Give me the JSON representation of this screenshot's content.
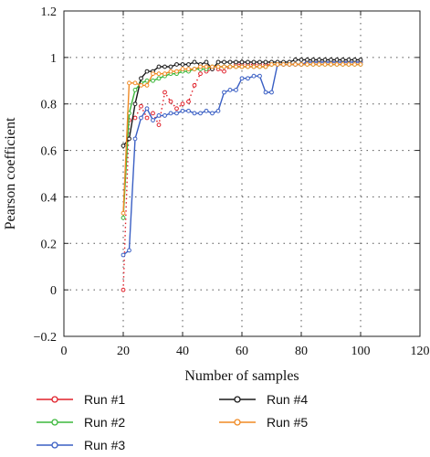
{
  "chart_data": {
    "type": "line",
    "title": "",
    "xlabel": "Number of samples",
    "ylabel": "Pearson coefficient",
    "xlim": [
      0,
      120
    ],
    "ylim": [
      -0.2,
      1.2
    ],
    "xticks": [
      0,
      20,
      40,
      60,
      80,
      100,
      120
    ],
    "yticks": [
      -0.2,
      0,
      0.2,
      0.4,
      0.6,
      0.8,
      1,
      1.2
    ],
    "xtick_labels": [
      "0",
      "20",
      "40",
      "60",
      "80",
      "100",
      "120"
    ],
    "ytick_labels": [
      "−0.2",
      "0",
      "0.2",
      "0.4",
      "0.6",
      "0.8",
      "1",
      "1.2"
    ],
    "grid": "dotted",
    "legend_position": "bottom",
    "series": [
      {
        "name": "Run #1",
        "color": "#e0202a",
        "line": "dotted",
        "x": [
          20,
          22,
          24,
          26,
          28,
          30,
          32,
          34,
          36,
          38,
          40,
          42,
          44,
          46,
          48,
          50,
          52,
          54,
          56,
          58,
          60,
          62,
          64,
          66,
          68,
          70,
          72,
          74,
          76,
          78,
          80,
          82,
          84,
          86,
          88,
          90,
          92,
          94,
          96,
          98,
          100
        ],
        "y": [
          0.0,
          0.73,
          0.74,
          0.79,
          0.74,
          0.76,
          0.71,
          0.85,
          0.81,
          0.78,
          0.8,
          0.81,
          0.88,
          0.93,
          0.94,
          0.95,
          0.95,
          0.94,
          0.96,
          0.97,
          0.97,
          0.97,
          0.97,
          0.97,
          0.97,
          0.97,
          0.97,
          0.97,
          0.97,
          0.97,
          0.97,
          0.98,
          0.98,
          0.98,
          0.98,
          0.98,
          0.98,
          0.98,
          0.98,
          0.98,
          0.98
        ]
      },
      {
        "name": "Run #2",
        "color": "#3cb83c",
        "line": "solid",
        "x": [
          20,
          22,
          24,
          26,
          28,
          30,
          32,
          34,
          36,
          38,
          40,
          42,
          44,
          46,
          48,
          50,
          52,
          54,
          56,
          58,
          60,
          62,
          64,
          66,
          68,
          70,
          72,
          74,
          76,
          78,
          80,
          82,
          84,
          86,
          88,
          90,
          92,
          94,
          96,
          98,
          100
        ],
        "y": [
          0.31,
          0.76,
          0.86,
          0.89,
          0.9,
          0.9,
          0.91,
          0.92,
          0.93,
          0.93,
          0.94,
          0.94,
          0.95,
          0.95,
          0.95,
          0.96,
          0.96,
          0.96,
          0.96,
          0.96,
          0.96,
          0.96,
          0.96,
          0.96,
          0.96,
          0.97,
          0.97,
          0.97,
          0.97,
          0.97,
          0.97,
          0.97,
          0.97,
          0.97,
          0.97,
          0.97,
          0.97,
          0.97,
          0.97,
          0.97,
          0.97
        ]
      },
      {
        "name": "Run #3",
        "color": "#3a5fc4",
        "line": "solid",
        "x": [
          20,
          22,
          24,
          26,
          28,
          30,
          32,
          34,
          36,
          38,
          40,
          42,
          44,
          46,
          48,
          50,
          52,
          54,
          56,
          58,
          60,
          62,
          64,
          66,
          68,
          70,
          72,
          74,
          76,
          78,
          80,
          82,
          84,
          86,
          88,
          90,
          92,
          94,
          96,
          98,
          100
        ],
        "y": [
          0.15,
          0.17,
          0.65,
          0.74,
          0.78,
          0.73,
          0.75,
          0.75,
          0.76,
          0.76,
          0.77,
          0.77,
          0.76,
          0.76,
          0.77,
          0.76,
          0.77,
          0.85,
          0.86,
          0.86,
          0.91,
          0.91,
          0.92,
          0.92,
          0.85,
          0.85,
          0.97,
          0.97,
          0.97,
          0.97,
          0.97,
          0.98,
          0.98,
          0.98,
          0.98,
          0.98,
          0.98,
          0.98,
          0.98,
          0.98,
          0.98
        ]
      },
      {
        "name": "Run #4",
        "color": "#1a1a1a",
        "line": "solid",
        "x": [
          20,
          22,
          24,
          26,
          28,
          30,
          32,
          34,
          36,
          38,
          40,
          42,
          44,
          46,
          48,
          50,
          52,
          54,
          56,
          58,
          60,
          62,
          64,
          66,
          68,
          70,
          72,
          74,
          76,
          78,
          80,
          82,
          84,
          86,
          88,
          90,
          92,
          94,
          96,
          98,
          100
        ],
        "y": [
          0.62,
          0.65,
          0.8,
          0.91,
          0.94,
          0.94,
          0.96,
          0.96,
          0.96,
          0.97,
          0.97,
          0.97,
          0.98,
          0.97,
          0.98,
          0.95,
          0.98,
          0.98,
          0.98,
          0.98,
          0.98,
          0.98,
          0.98,
          0.98,
          0.98,
          0.98,
          0.98,
          0.98,
          0.98,
          0.99,
          0.99,
          0.99,
          0.99,
          0.99,
          0.99,
          0.99,
          0.99,
          0.99,
          0.99,
          0.99,
          0.99
        ]
      },
      {
        "name": "Run #5",
        "color": "#f08a24",
        "line": "solid",
        "x": [
          20,
          22,
          24,
          26,
          28,
          30,
          32,
          34,
          36,
          38,
          40,
          42,
          44,
          46,
          48,
          50,
          52,
          54,
          56,
          58,
          60,
          62,
          64,
          66,
          68,
          70,
          72,
          74,
          76,
          78,
          80,
          82,
          84,
          86,
          88,
          90,
          92,
          94,
          96,
          98,
          100
        ],
        "y": [
          0.33,
          0.89,
          0.89,
          0.88,
          0.88,
          0.93,
          0.93,
          0.93,
          0.94,
          0.94,
          0.95,
          0.95,
          0.95,
          0.96,
          0.96,
          0.96,
          0.96,
          0.96,
          0.96,
          0.96,
          0.96,
          0.96,
          0.96,
          0.96,
          0.96,
          0.97,
          0.97,
          0.97,
          0.97,
          0.97,
          0.97,
          0.97,
          0.97,
          0.97,
          0.97,
          0.97,
          0.97,
          0.97,
          0.97,
          0.97,
          0.97
        ]
      }
    ]
  }
}
